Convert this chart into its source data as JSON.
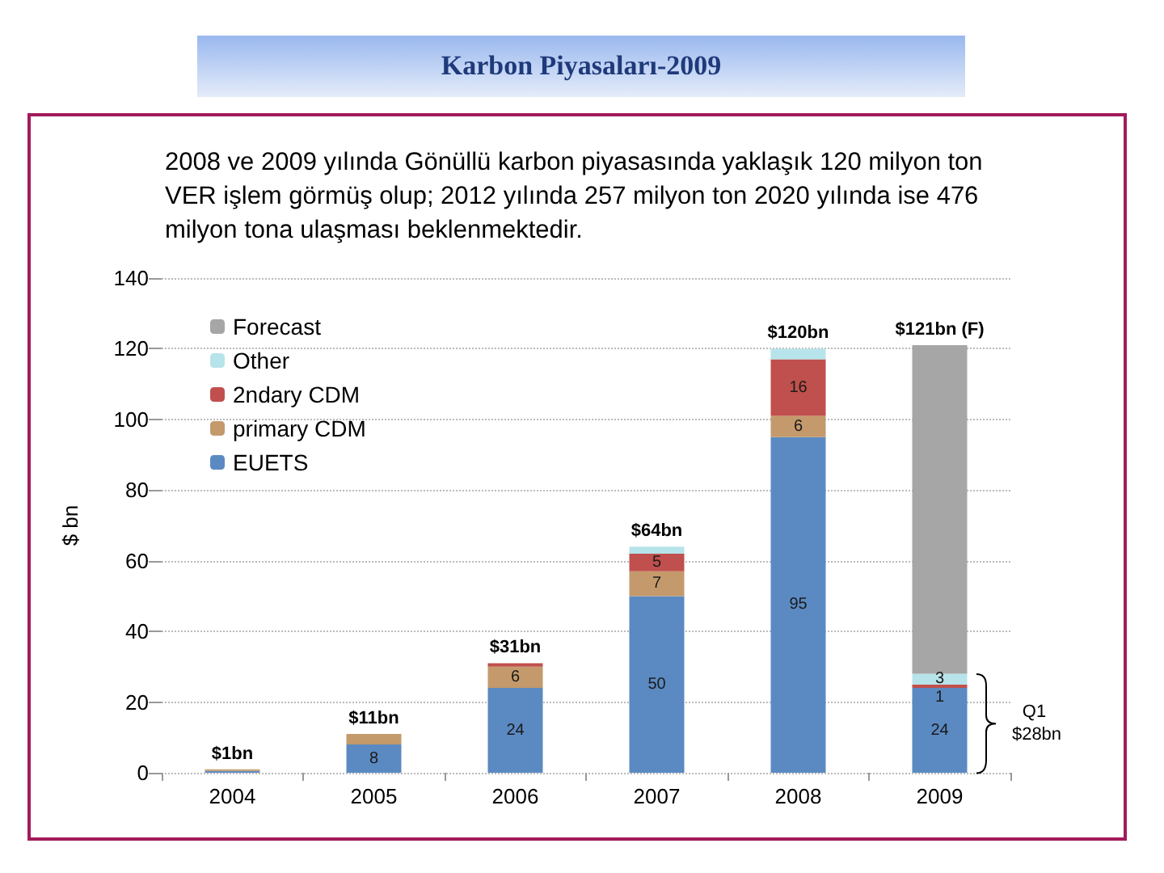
{
  "chart_data": {
    "type": "bar",
    "stacked": true,
    "title": "Karbon Piyasaları-2009",
    "subtitle": "2008 ve 2009  yılında Gönüllü karbon piyasasında yaklaşık 120 milyon ton VER işlem görmüş olup; 2012 yılında 257 milyon ton 2020 yılında ise 476 milyon tona ulaşması beklenmektedir.",
    "ylabel": "$ bn",
    "categories": [
      "2004",
      "2005",
      "2006",
      "2007",
      "2008",
      "2009"
    ],
    "series": [
      {
        "name": "EUETS",
        "color": "#5b8ac2",
        "values": [
          0.5,
          8,
          24,
          50,
          95,
          24
        ],
        "value_labels": [
          null,
          "8",
          "24",
          "50",
          "95",
          "24"
        ]
      },
      {
        "name": "primary CDM",
        "color": "#c49a6c",
        "values": [
          0.5,
          3,
          6,
          7,
          6,
          null
        ],
        "value_labels": [
          null,
          null,
          "6",
          "7",
          "6",
          null
        ]
      },
      {
        "name": "2ndary CDM",
        "color": "#c0504d",
        "values": [
          null,
          null,
          1,
          5,
          16,
          1
        ],
        "value_labels": [
          null,
          null,
          null,
          "5",
          "16",
          "1"
        ]
      },
      {
        "name": "Other",
        "color": "#b7e4ea",
        "values": [
          null,
          null,
          null,
          2,
          3,
          3
        ],
        "value_labels": [
          null,
          null,
          null,
          null,
          null,
          "3"
        ]
      },
      {
        "name": "Forecast",
        "color": "#a6a6a6",
        "values": [
          null,
          null,
          null,
          null,
          null,
          93
        ]
      }
    ],
    "totals": [
      "$1bn",
      "$11bn",
      "$31bn",
      "$64bn",
      "$120bn",
      "$121bn (F)"
    ],
    "annotations": [
      "Q1 $28bn"
    ],
    "ylim": [
      0,
      140
    ],
    "yticks": [
      0,
      20,
      40,
      60,
      80,
      100,
      120,
      140
    ],
    "grid": "y",
    "legend": "top left"
  }
}
